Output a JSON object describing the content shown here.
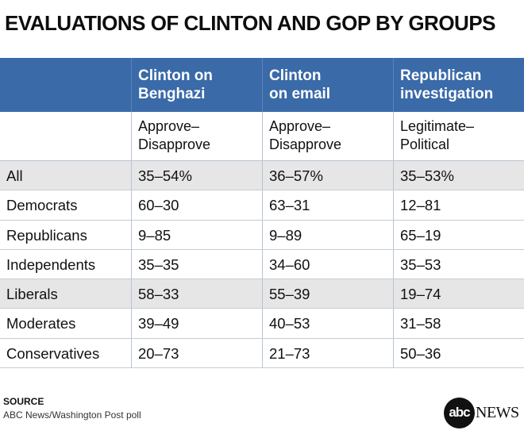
{
  "title": "EVALUATIONS OF CLINTON AND GOP BY GROUPS",
  "chart_data": {
    "type": "table",
    "columns": [
      {
        "header": "Clinton on Benghazi",
        "header_lines": [
          "Clinton on",
          "Benghazi"
        ],
        "subheader_lines": [
          "Approve–",
          "Disapprove"
        ]
      },
      {
        "header": "Clinton on email",
        "header_lines": [
          "Clinton",
          "on email"
        ],
        "subheader_lines": [
          "Approve–",
          "Disapprove"
        ]
      },
      {
        "header": "Republican investigation",
        "header_lines": [
          "Republican",
          "investigation"
        ],
        "subheader_lines": [
          "Legitimate–",
          "Political"
        ]
      }
    ],
    "rows": [
      {
        "group": "All",
        "values": [
          "35–54%",
          "36–57%",
          "35–53%"
        ]
      },
      {
        "group": "Democrats",
        "values": [
          "60–30",
          "63–31",
          "12–81"
        ]
      },
      {
        "group": "Republicans",
        "values": [
          "9–85",
          "9–89",
          "65–19"
        ]
      },
      {
        "group": "Independents",
        "values": [
          "35–35",
          "34–60",
          "35–53"
        ]
      },
      {
        "group": "Liberals",
        "values": [
          "58–33",
          "55–39",
          "19–74"
        ]
      },
      {
        "group": "Moderates",
        "values": [
          "39–49",
          "40–53",
          "31–58"
        ]
      },
      {
        "group": "Conservatives",
        "values": [
          "20–73",
          "21–73",
          "50–36"
        ]
      }
    ],
    "shaded_rows": [
      0,
      4
    ]
  },
  "source": {
    "label": "SOURCE",
    "text": "ABC News/Washington Post poll"
  },
  "logo": {
    "mark": "abc",
    "word": "NEWS"
  },
  "colors": {
    "header_bg": "#3a6aa8",
    "shade_bg": "#e6e6e6"
  }
}
